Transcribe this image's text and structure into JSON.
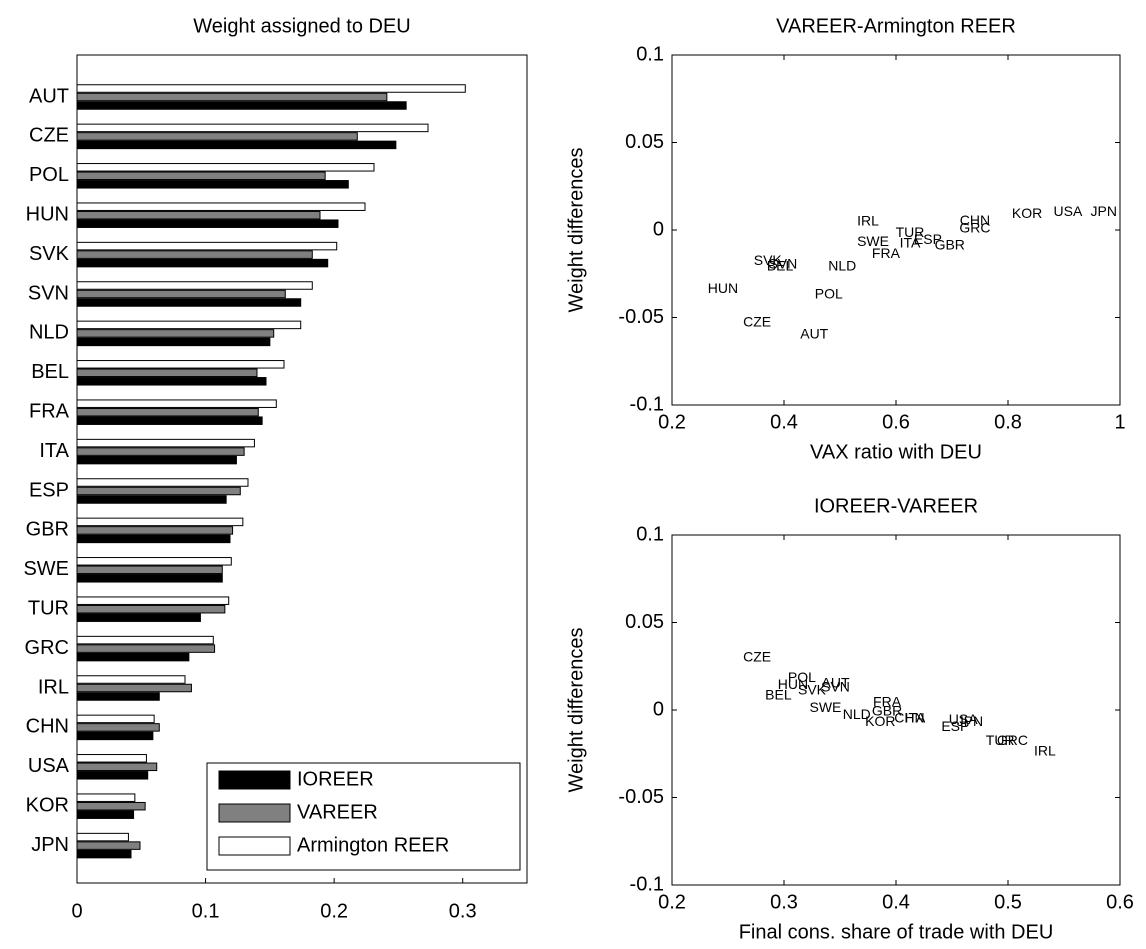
{
  "chart_data": [
    {
      "type": "bar",
      "orientation": "horizontal",
      "title": "Weight assigned to DEU",
      "categories": [
        "AUT",
        "CZE",
        "POL",
        "HUN",
        "SVK",
        "SVN",
        "NLD",
        "BEL",
        "FRA",
        "ITA",
        "ESP",
        "GBR",
        "SWE",
        "TUR",
        "GRC",
        "IRL",
        "CHN",
        "USA",
        "KOR",
        "JPN"
      ],
      "series": [
        {
          "name": "IOREER",
          "color": "#000000",
          "values": [
            0.256,
            0.248,
            0.211,
            0.203,
            0.195,
            0.174,
            0.15,
            0.147,
            0.144,
            0.124,
            0.116,
            0.119,
            0.113,
            0.096,
            0.087,
            0.064,
            0.059,
            0.055,
            0.044,
            0.042
          ]
        },
        {
          "name": "VAREER",
          "color": "#808080",
          "values": [
            0.241,
            0.218,
            0.193,
            0.189,
            0.183,
            0.162,
            0.153,
            0.14,
            0.141,
            0.13,
            0.127,
            0.121,
            0.113,
            0.115,
            0.107,
            0.089,
            0.064,
            0.062,
            0.053,
            0.049
          ]
        },
        {
          "name": "Armington REER",
          "color": "#ffffff",
          "values": [
            0.302,
            0.273,
            0.231,
            0.224,
            0.202,
            0.183,
            0.174,
            0.161,
            0.155,
            0.138,
            0.133,
            0.129,
            0.12,
            0.118,
            0.106,
            0.084,
            0.06,
            0.054,
            0.045,
            0.04
          ]
        }
      ],
      "xlim": [
        0,
        0.35
      ],
      "xticks": [
        0,
        0.1,
        0.2,
        0.3
      ],
      "legend": "lower-right"
    },
    {
      "type": "scatter",
      "title": "VAREER-Armington REER",
      "x_label": "VAX ratio with DEU",
      "y_label": "Weight differences",
      "labels": [
        "IRL",
        "TUR",
        "ESP",
        "ITA",
        "SWE",
        "FRA",
        "GBR",
        "CHN",
        "GRC",
        "KOR",
        "USA",
        "JPN",
        "SVK",
        "SVN",
        "BEL",
        "NLD",
        "HUN",
        "POL",
        "CZE",
        "AUT"
      ],
      "x": [
        0.55,
        0.625,
        0.657,
        0.625,
        0.559,
        0.582,
        0.696,
        0.741,
        0.741,
        0.834,
        0.907,
        0.971,
        0.371,
        0.398,
        0.393,
        0.504,
        0.291,
        0.48,
        0.352,
        0.454
      ],
      "y": [
        0.0046,
        -0.002,
        -0.006,
        -0.008,
        -0.007,
        -0.014,
        -0.009,
        0.005,
        0.0006,
        0.009,
        0.01,
        0.01,
        -0.018,
        -0.02,
        -0.021,
        -0.021,
        -0.034,
        -0.037,
        -0.053,
        -0.06
      ],
      "xlim": [
        0.2,
        1
      ],
      "xticks": [
        0.2,
        0.4,
        0.6,
        0.8,
        1
      ],
      "ylim": [
        -0.1,
        0.1
      ],
      "yticks": [
        -0.1,
        -0.05,
        0,
        0.05,
        0.1
      ]
    },
    {
      "type": "scatter",
      "title": "IOREER-VAREER",
      "x_label": "Final cons. share of trade with DEU",
      "y_label": "Weight differences",
      "labels": [
        "CZE",
        "POL",
        "AUT",
        "HUN",
        "SVK",
        "SVN",
        "BEL",
        "FRA",
        "SWE",
        "GBR",
        "NLD",
        "ITA",
        "CHN",
        "KOR",
        "USA",
        "JPN",
        "ESP",
        "TUR",
        "GRC",
        "IRL"
      ],
      "x": [
        0.276,
        0.316,
        0.346,
        0.308,
        0.325,
        0.346,
        0.295,
        0.392,
        0.337,
        0.392,
        0.365,
        0.417,
        0.412,
        0.386,
        0.46,
        0.466,
        0.453,
        0.493,
        0.504,
        0.533
      ],
      "y": [
        0.0297,
        0.018,
        0.015,
        0.014,
        0.011,
        0.0126,
        0.008,
        0.004,
        0.001,
        -0.001,
        -0.003,
        -0.005,
        -0.005,
        -0.007,
        -0.006,
        -0.007,
        -0.01,
        -0.018,
        -0.018,
        -0.024
      ],
      "xlim": [
        0.2,
        0.6
      ],
      "xticks": [
        0.2,
        0.3,
        0.4,
        0.5,
        0.6
      ],
      "ylim": [
        -0.1,
        0.1
      ],
      "yticks": [
        -0.1,
        -0.05,
        0,
        0.05,
        0.1
      ]
    }
  ]
}
